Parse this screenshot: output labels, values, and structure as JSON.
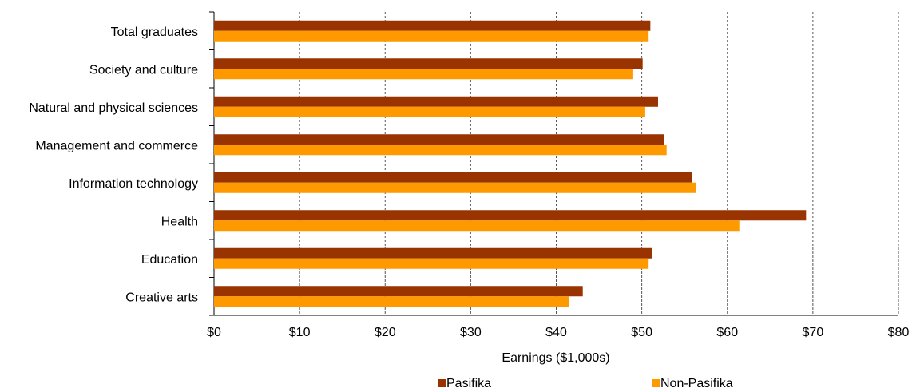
{
  "chart_data": {
    "type": "hbar",
    "categories": [
      "Total graduates",
      "Society and culture",
      "Natural and physical sciences",
      "Management and commerce",
      "Information technology",
      "Health",
      "Education",
      "Creative arts"
    ],
    "series": [
      {
        "name": "Pasifika",
        "color": "#993300",
        "values": [
          51.0,
          50.1,
          51.9,
          52.6,
          55.9,
          69.2,
          51.2,
          43.1
        ]
      },
      {
        "name": "Non-Pasifika",
        "color": "#FF9900",
        "values": [
          50.8,
          49.0,
          50.4,
          52.9,
          56.3,
          61.4,
          50.8,
          41.5
        ]
      }
    ],
    "x_label": "Earnings ($1,000s)",
    "xlim": [
      0,
      80
    ],
    "xticks": [
      {
        "value": 0,
        "label": "$0"
      },
      {
        "value": 10,
        "label": "$10"
      },
      {
        "value": 20,
        "label": "$20"
      },
      {
        "value": 30,
        "label": "$30"
      },
      {
        "value": 40,
        "label": "$40"
      },
      {
        "value": 50,
        "label": "$50"
      },
      {
        "value": 60,
        "label": "$60"
      },
      {
        "value": 70,
        "label": "$70"
      },
      {
        "value": 80,
        "label": "$80"
      }
    ],
    "grid": true,
    "legend": "bottom"
  }
}
